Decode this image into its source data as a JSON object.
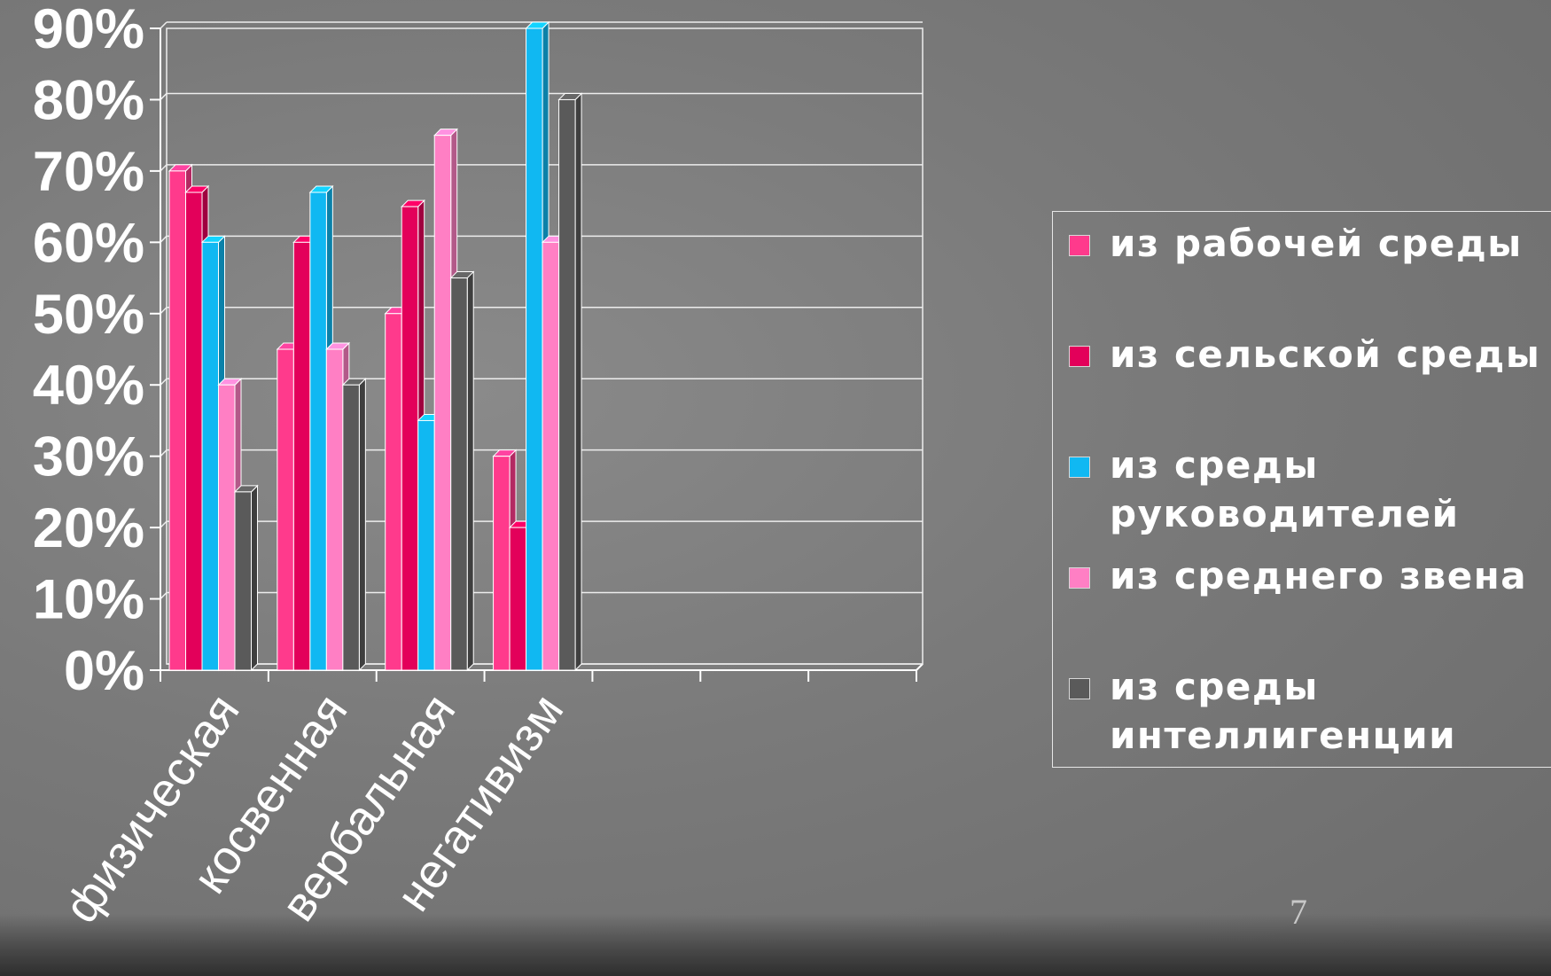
{
  "chart_data": {
    "type": "bar",
    "categories": [
      "физическая",
      "косвенная",
      "вербальная",
      "негативизм",
      "",
      "",
      ""
    ],
    "series": [
      {
        "name": "из рабочей среды",
        "color": "#ff3a8c",
        "values": [
          70,
          45,
          50,
          30,
          null,
          null,
          null
        ]
      },
      {
        "name": "из сельской среды",
        "color": "#e3005a",
        "values": [
          67,
          60,
          65,
          20,
          null,
          null,
          null
        ]
      },
      {
        "name": "из среды руководителей",
        "color": "#10b8f2",
        "values": [
          60,
          67,
          35,
          90,
          null,
          null,
          null
        ]
      },
      {
        "name": "из  среднего звена",
        "color": "#ff7fc4",
        "values": [
          40,
          45,
          75,
          60,
          null,
          null,
          null
        ]
      },
      {
        "name": "из среды интеллигенции",
        "color": "#5a5a5a",
        "values": [
          25,
          40,
          55,
          80,
          null,
          null,
          null
        ]
      }
    ],
    "y_ticks": [
      "0%",
      "10%",
      "20%",
      "30%",
      "40%",
      "50%",
      "60%",
      "70%",
      "80%",
      "90%"
    ],
    "ylim": [
      0,
      90
    ],
    "y_unit": "%",
    "grid": true,
    "legend_position": "right"
  },
  "page_number": "7"
}
